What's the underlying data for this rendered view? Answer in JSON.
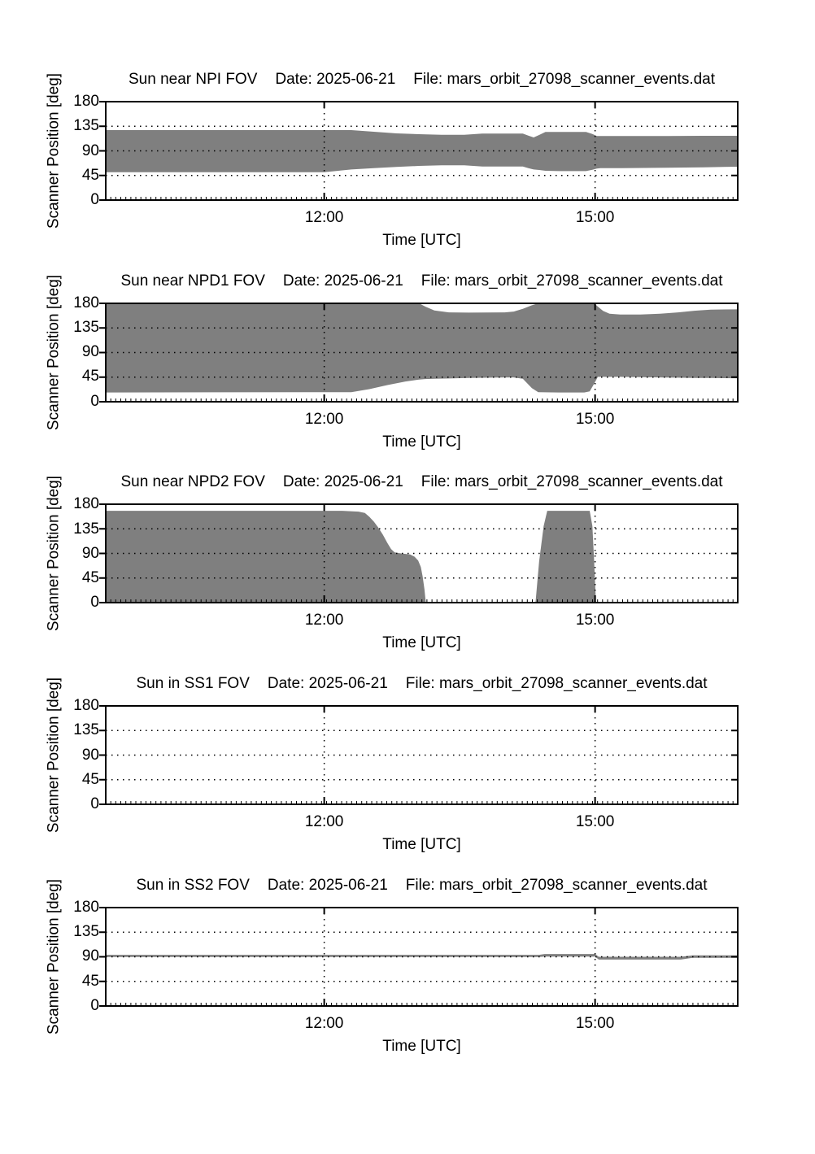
{
  "styles": {
    "band_fill": "#7f7f7f",
    "axis_color": "#000000",
    "text_color": "#000000",
    "background": "#ffffff"
  },
  "axis": {
    "ylabel": "Scanner Position [deg]",
    "xlabel": "Time [UTC]",
    "y_range_deg": [
      0,
      180
    ],
    "x_range_hours": [
      9.58,
      16.58
    ],
    "y_ticks": [
      {
        "value": 180,
        "label": "180"
      },
      {
        "value": 135,
        "label": "135"
      },
      {
        "value": 90,
        "label": "90"
      },
      {
        "value": 45,
        "label": "45"
      },
      {
        "value": 0,
        "label": "0"
      }
    ],
    "x_ticks": [
      {
        "hours": 12,
        "label": "12:00"
      },
      {
        "hours": 15,
        "label": "15:00"
      }
    ],
    "grid": "dotted"
  },
  "chart_data": [
    {
      "type": "area",
      "name": "sun-near-npi-fov",
      "title": "Sun near NPI FOV   Date: 2025-06-21   File: mars_orbit_27098_scanner_events.dat",
      "fov_label": "Sun near NPI FOV",
      "date_label": "Date: 2025-06-21",
      "file_label": "File: mars_orbit_27098_scanner_events.dat",
      "xlabel": "Time [UTC]",
      "ylabel": "Scanner Position [deg]",
      "ylim": [
        0,
        180
      ],
      "xlim_hours": [
        9.58,
        16.58
      ],
      "bands": [
        {
          "x": [
            9.58,
            12.0,
            12.3,
            12.55,
            12.8,
            13.05,
            13.3,
            13.55,
            13.75,
            14.2,
            14.26,
            14.32,
            14.38,
            14.45,
            14.6,
            14.9,
            14.97,
            15.02,
            15.06,
            15.3,
            15.8,
            16.2,
            16.58
          ],
          "top": [
            128,
            128,
            128,
            125,
            122,
            120.5,
            119.5,
            119.5,
            121.5,
            121.5,
            118,
            114.5,
            119,
            124.5,
            124.5,
            124.5,
            121,
            117,
            117,
            117,
            117,
            117.5,
            117.5
          ],
          "bottom": [
            51,
            51,
            56,
            58.5,
            60.5,
            62.5,
            63.5,
            63.5,
            61.5,
            61.5,
            58.5,
            56,
            55,
            53.5,
            53,
            53,
            55.5,
            57.5,
            58.5,
            58.5,
            59,
            60,
            61
          ]
        }
      ]
    },
    {
      "type": "area",
      "name": "sun-near-npd1-fov",
      "title": "Sun near NPD1 FOV   Date: 2025-06-21   File: mars_orbit_27098_scanner_events.dat",
      "fov_label": "Sun near NPD1 FOV",
      "date_label": "Date: 2025-06-21",
      "file_label": "File: mars_orbit_27098_scanner_events.dat",
      "xlabel": "Time [UTC]",
      "ylabel": "Scanner Position [deg]",
      "ylim": [
        0,
        180
      ],
      "xlim_hours": [
        9.58,
        16.58
      ],
      "bands": [
        {
          "x": [
            9.58,
            12.3,
            12.5,
            12.7,
            12.9,
            13.05,
            13.12,
            13.22,
            13.38,
            13.6,
            14.0,
            14.1,
            14.2,
            14.3,
            14.37,
            14.6,
            14.88,
            14.94,
            14.99,
            15.03,
            15.09,
            15.16,
            15.28,
            15.5,
            15.72,
            15.92,
            16.1,
            16.28,
            16.58
          ],
          "top": [
            180,
            180,
            180,
            180,
            180,
            180,
            174,
            167,
            163.5,
            163,
            163.5,
            165,
            170,
            176.5,
            180,
            180,
            180,
            180,
            180,
            174,
            166,
            161,
            159.5,
            159.5,
            161,
            163.5,
            166.5,
            168.5,
            169
          ],
          "bottom": [
            17,
            17.5,
            23,
            30.5,
            37,
            40.5,
            41.5,
            42,
            42.5,
            43.5,
            44.5,
            44.5,
            42,
            25,
            17.5,
            17,
            17,
            19,
            33,
            45.5,
            45.5,
            45.5,
            45.5,
            45,
            44.5,
            44,
            43.5,
            43.5,
            43
          ]
        }
      ]
    },
    {
      "type": "area",
      "name": "sun-near-npd2-fov",
      "title": "Sun near NPD2 FOV   Date: 2025-06-21   File: mars_orbit_27098_scanner_events.dat",
      "fov_label": "Sun near NPD2 FOV",
      "date_label": "Date: 2025-06-21",
      "file_label": "File: mars_orbit_27098_scanner_events.dat",
      "xlabel": "Time [UTC]",
      "ylabel": "Scanner Position [deg]",
      "ylim": [
        0,
        180
      ],
      "xlim_hours": [
        9.58,
        16.58
      ],
      "bands": [
        {
          "x": [
            9.58,
            12.2,
            12.38,
            12.45,
            12.5,
            12.55,
            12.6,
            12.65,
            12.7,
            12.74,
            12.78,
            12.85,
            12.95,
            13.0,
            13.04,
            13.07,
            13.09,
            13.11,
            13.125
          ],
          "top": [
            168,
            168,
            166.5,
            164,
            157,
            148,
            137,
            124,
            109,
            98,
            92,
            90,
            88,
            84,
            77,
            65,
            48,
            25,
            0
          ],
          "bottom": [
            0,
            0,
            0,
            0,
            0,
            0,
            0,
            0,
            0,
            0,
            0,
            0,
            0,
            0,
            0,
            0,
            0,
            0,
            0
          ]
        },
        {
          "x": [
            14.34,
            14.38,
            14.43,
            14.47,
            14.94,
            14.97,
            14.99,
            15.01
          ],
          "top": [
            0,
            75,
            140,
            168,
            168,
            140,
            75,
            0
          ],
          "bottom": [
            0,
            0,
            0,
            0,
            0,
            0,
            0,
            0
          ]
        }
      ]
    },
    {
      "type": "area",
      "name": "sun-in-ss1-fov",
      "title": "Sun in SS1 FOV   Date: 2025-06-21   File: mars_orbit_27098_scanner_events.dat",
      "fov_label": "Sun in SS1 FOV",
      "date_label": "Date: 2025-06-21",
      "file_label": "File: mars_orbit_27098_scanner_events.dat",
      "xlabel": "Time [UTC]",
      "ylabel": "Scanner Position [deg]",
      "ylim": [
        0,
        180
      ],
      "xlim_hours": [
        9.58,
        16.58
      ],
      "bands": []
    },
    {
      "type": "area",
      "name": "sun-in-ss2-fov",
      "title": "Sun in SS2 FOV   Date: 2025-06-21   File: mars_orbit_27098_scanner_events.dat",
      "fov_label": "Sun in SS2 FOV",
      "date_label": "Date: 2025-06-21",
      "file_label": "File: mars_orbit_27098_scanner_events.dat",
      "xlabel": "Time [UTC]",
      "ylabel": "Scanner Position [deg]",
      "ylim": [
        0,
        180
      ],
      "xlim_hours": [
        9.58,
        16.58
      ],
      "bands": [
        {
          "x": [
            9.58,
            14.38,
            14.44,
            14.96,
            15.0,
            15.04,
            15.95,
            16.08,
            16.58
          ],
          "top": [
            93.5,
            93.5,
            95,
            95,
            95,
            90,
            90,
            92.5,
            92.5
          ],
          "bottom": [
            89.5,
            89.5,
            90.5,
            90.5,
            90.5,
            85,
            85,
            88,
            88
          ]
        }
      ]
    }
  ]
}
